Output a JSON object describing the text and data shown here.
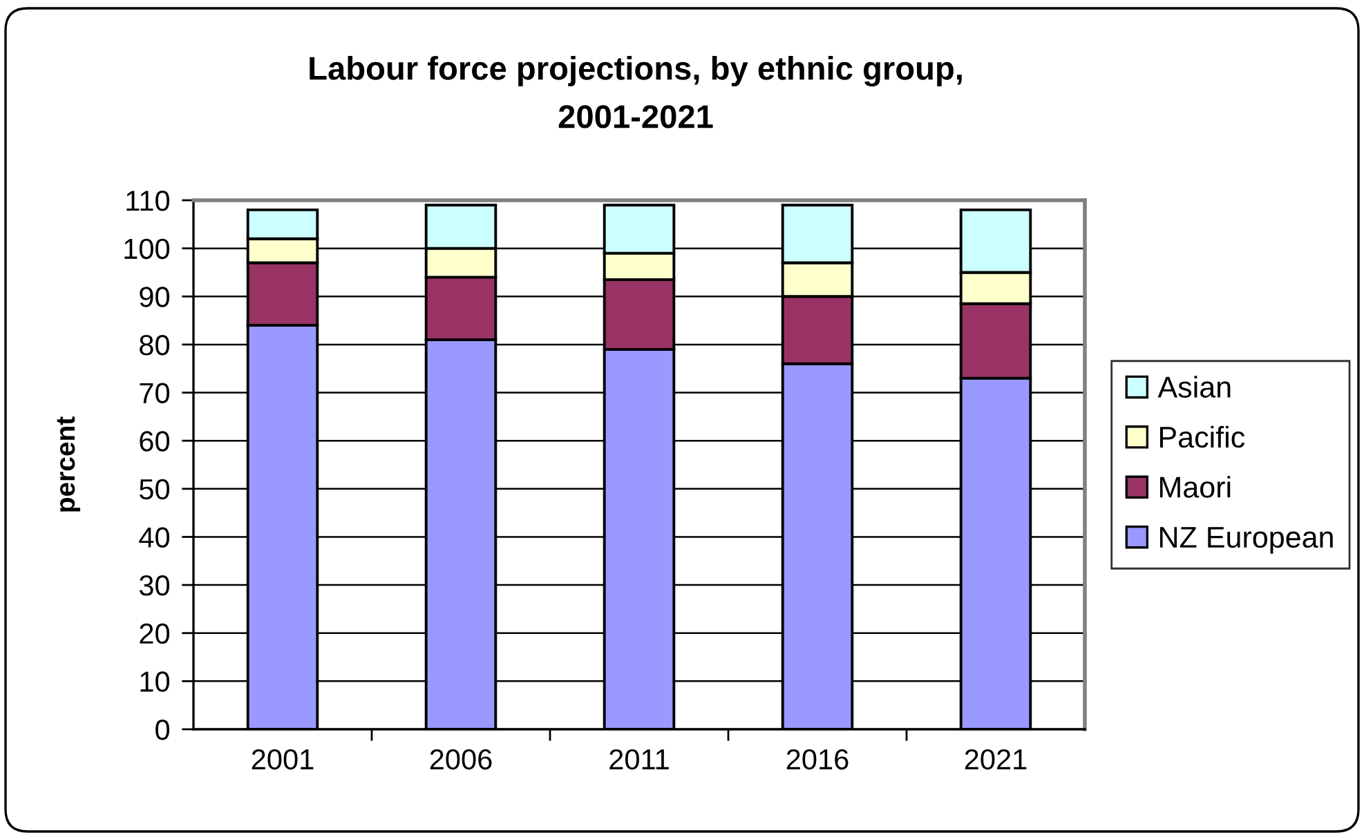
{
  "chart_data": {
    "type": "bar",
    "title": "Labour force projections, by ethnic group,\n2001-2021",
    "ylabel": "percent",
    "categories": [
      "2001",
      "2006",
      "2011",
      "2016",
      "2021"
    ],
    "stacked": true,
    "series": [
      {
        "name": "NZ European",
        "color": "#9999ff",
        "values": [
          84,
          81,
          79,
          76,
          73
        ]
      },
      {
        "name": "Maori",
        "color": "#993366",
        "values": [
          13,
          13,
          14.5,
          14,
          15.5
        ]
      },
      {
        "name": "Pacific",
        "color": "#ffffcc",
        "values": [
          5,
          6,
          5.5,
          7,
          6.5
        ]
      },
      {
        "name": "Asian",
        "color": "#ccffff",
        "values": [
          6,
          9,
          10,
          12,
          13
        ]
      }
    ],
    "ylim": [
      0,
      110
    ],
    "yticks": [
      0,
      10,
      20,
      30,
      40,
      50,
      60,
      70,
      80,
      90,
      100,
      110
    ],
    "grid": "y",
    "legend": "right"
  }
}
